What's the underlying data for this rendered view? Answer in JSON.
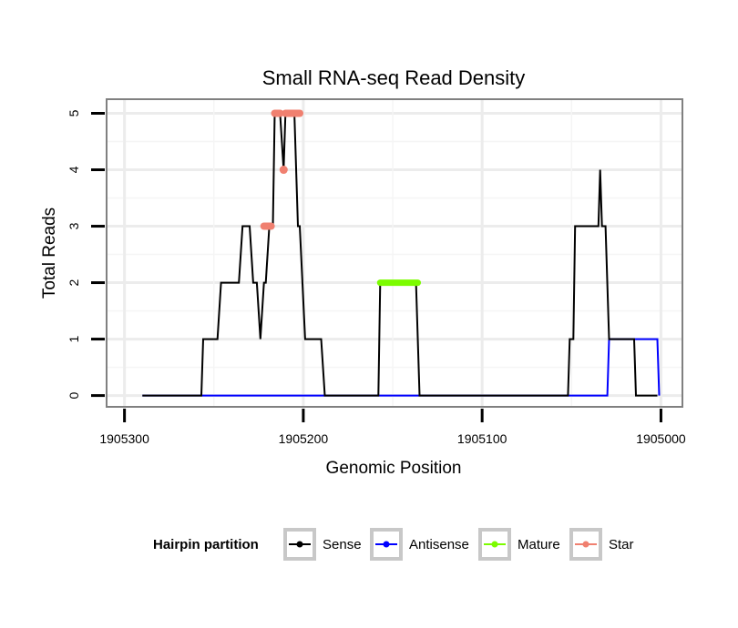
{
  "chart_data": {
    "type": "line",
    "title": "Small RNA-seq Read Density",
    "xlabel": "Genomic Position",
    "ylabel": "Total Reads",
    "xlim": [
      1905310,
      1904988
    ],
    "ylim": [
      -0.2,
      5.25
    ],
    "x_reversed": true,
    "grid": true,
    "x_ticks": [
      1905300,
      1905200,
      1905100,
      1905000
    ],
    "x_tick_labels": [
      "1905300",
      "1905200",
      "1905100",
      "1905000"
    ],
    "y_ticks": [
      0,
      1,
      2,
      3,
      4,
      5
    ],
    "y_tick_labels": [
      "0",
      "1",
      "2",
      "3",
      "4",
      "5"
    ],
    "legend": {
      "title": "Hairpin partition",
      "position": "bottom",
      "entries": [
        "Sense",
        "Antisense",
        "Mature",
        "Star"
      ]
    },
    "series": [
      {
        "name": "Antisense",
        "color": "#0000ff",
        "points": [
          [
            1905290,
            0
          ],
          [
            1905030,
            0
          ],
          [
            1905029,
            1
          ],
          [
            1905002,
            1
          ],
          [
            1905001,
            0
          ]
        ]
      },
      {
        "name": "Sense",
        "color": "#000000",
        "points": [
          [
            1905290,
            0
          ],
          [
            1905257,
            0
          ],
          [
            1905256,
            1
          ],
          [
            1905248,
            1
          ],
          [
            1905246,
            2
          ],
          [
            1905236,
            2
          ],
          [
            1905234,
            3
          ],
          [
            1905230,
            3
          ],
          [
            1905228,
            2
          ],
          [
            1905226,
            2
          ],
          [
            1905224,
            1
          ],
          [
            1905222,
            2
          ],
          [
            1905221,
            2
          ],
          [
            1905219,
            3
          ],
          [
            1905217,
            3
          ],
          [
            1905216,
            5
          ],
          [
            1905213,
            5
          ],
          [
            1905211,
            4
          ],
          [
            1905210,
            5
          ],
          [
            1905205,
            5
          ],
          [
            1905203,
            3
          ],
          [
            1905202,
            3
          ],
          [
            1905199,
            1
          ],
          [
            1905190,
            1
          ],
          [
            1905188,
            0
          ],
          [
            1905158,
            0
          ],
          [
            1905157,
            2
          ],
          [
            1905137,
            2
          ],
          [
            1905135,
            0
          ],
          [
            1905052,
            0
          ],
          [
            1905051,
            1
          ],
          [
            1905049,
            1
          ],
          [
            1905048,
            3
          ],
          [
            1905035,
            3
          ],
          [
            1905034,
            4
          ],
          [
            1905033,
            3
          ],
          [
            1905031,
            3
          ],
          [
            1905029,
            1
          ],
          [
            1905015,
            1
          ],
          [
            1905014,
            0
          ],
          [
            1905002,
            0
          ]
        ]
      },
      {
        "name": "Mature",
        "color": "#7cfc00",
        "points": [
          [
            1905157,
            2
          ],
          [
            1905136,
            2
          ]
        ]
      },
      {
        "name": "Star",
        "color": "#f08070",
        "segments": [
          [
            [
              1905222,
              3
            ],
            [
              1905218,
              3
            ]
          ],
          [
            [
              1905216,
              5
            ],
            [
              1905213,
              5
            ]
          ],
          [
            [
              1905211,
              4
            ],
            [
              1905211,
              4
            ]
          ],
          [
            [
              1905210,
              5
            ],
            [
              1905202,
              5
            ]
          ]
        ]
      }
    ]
  }
}
